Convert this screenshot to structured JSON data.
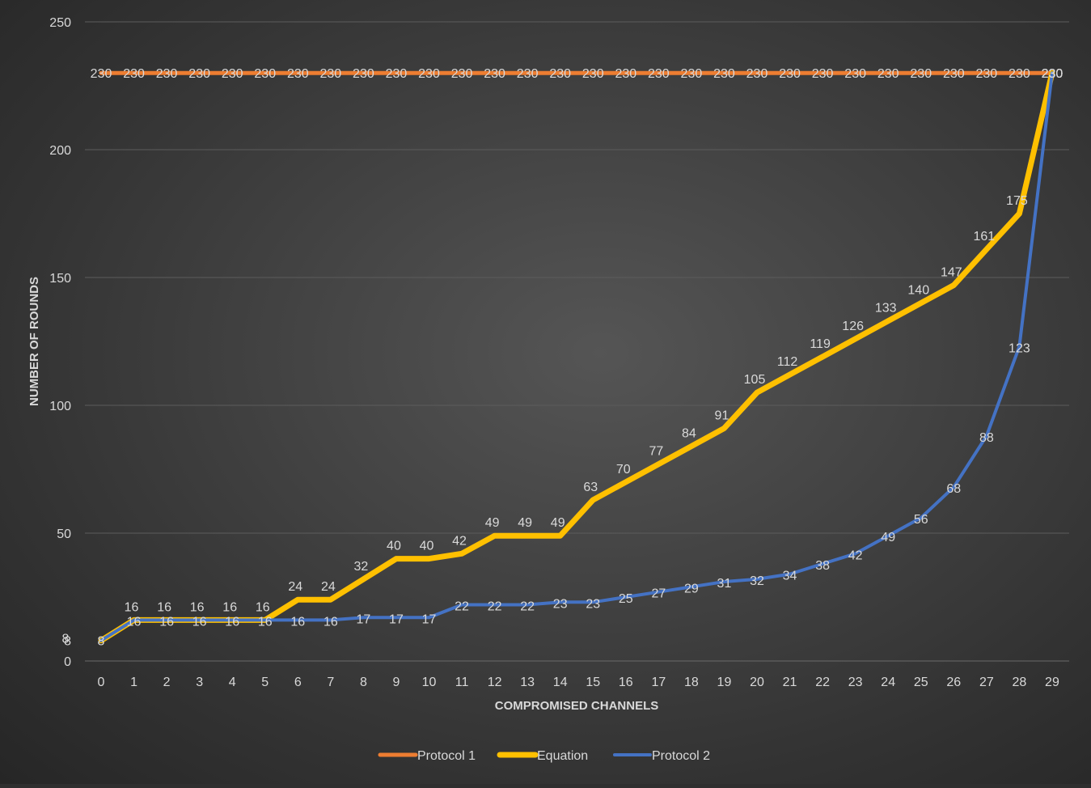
{
  "chart_data": {
    "type": "line",
    "title": "",
    "xlabel": "COMPROMISED CHANNELS",
    "ylabel": "NUMBER OF ROUNDS",
    "x": [
      0,
      1,
      2,
      3,
      4,
      5,
      6,
      7,
      8,
      9,
      10,
      11,
      12,
      13,
      14,
      15,
      16,
      17,
      18,
      19,
      20,
      21,
      22,
      23,
      24,
      25,
      26,
      27,
      28,
      29
    ],
    "yticks": [
      0,
      8,
      50,
      100,
      150,
      200,
      250
    ],
    "ylim": [
      0,
      250
    ],
    "grid": true,
    "legend_position": "bottom",
    "series": [
      {
        "name": "Protocol 1",
        "color": "#ed7d31",
        "values": [
          230,
          230,
          230,
          230,
          230,
          230,
          230,
          230,
          230,
          230,
          230,
          230,
          230,
          230,
          230,
          230,
          230,
          230,
          230,
          230,
          230,
          230,
          230,
          230,
          230,
          230,
          230,
          230,
          230,
          230
        ]
      },
      {
        "name": "Equation",
        "color": "#ffc000",
        "values": [
          8,
          16,
          16,
          16,
          16,
          16,
          24,
          24,
          32,
          40,
          40,
          42,
          49,
          49,
          49,
          63,
          70,
          77,
          84,
          91,
          105,
          112,
          119,
          126,
          133,
          140,
          147,
          161,
          175,
          230
        ],
        "labels": [
          8,
          16,
          16,
          16,
          16,
          16,
          24,
          24,
          32,
          40,
          40,
          42,
          49,
          49,
          49,
          63,
          70,
          77,
          84,
          91,
          105,
          112,
          119,
          126,
          133,
          140,
          147,
          161,
          175,
          230
        ]
      },
      {
        "name": "Protocol 2",
        "color": "#4472c4",
        "values": [
          8,
          16,
          16,
          16,
          16,
          16,
          16,
          16,
          17,
          17,
          17,
          22,
          22,
          22,
          23,
          23,
          25,
          27,
          29,
          31,
          32,
          34,
          38,
          42,
          49,
          56,
          68,
          88,
          123,
          230
        ]
      }
    ]
  }
}
